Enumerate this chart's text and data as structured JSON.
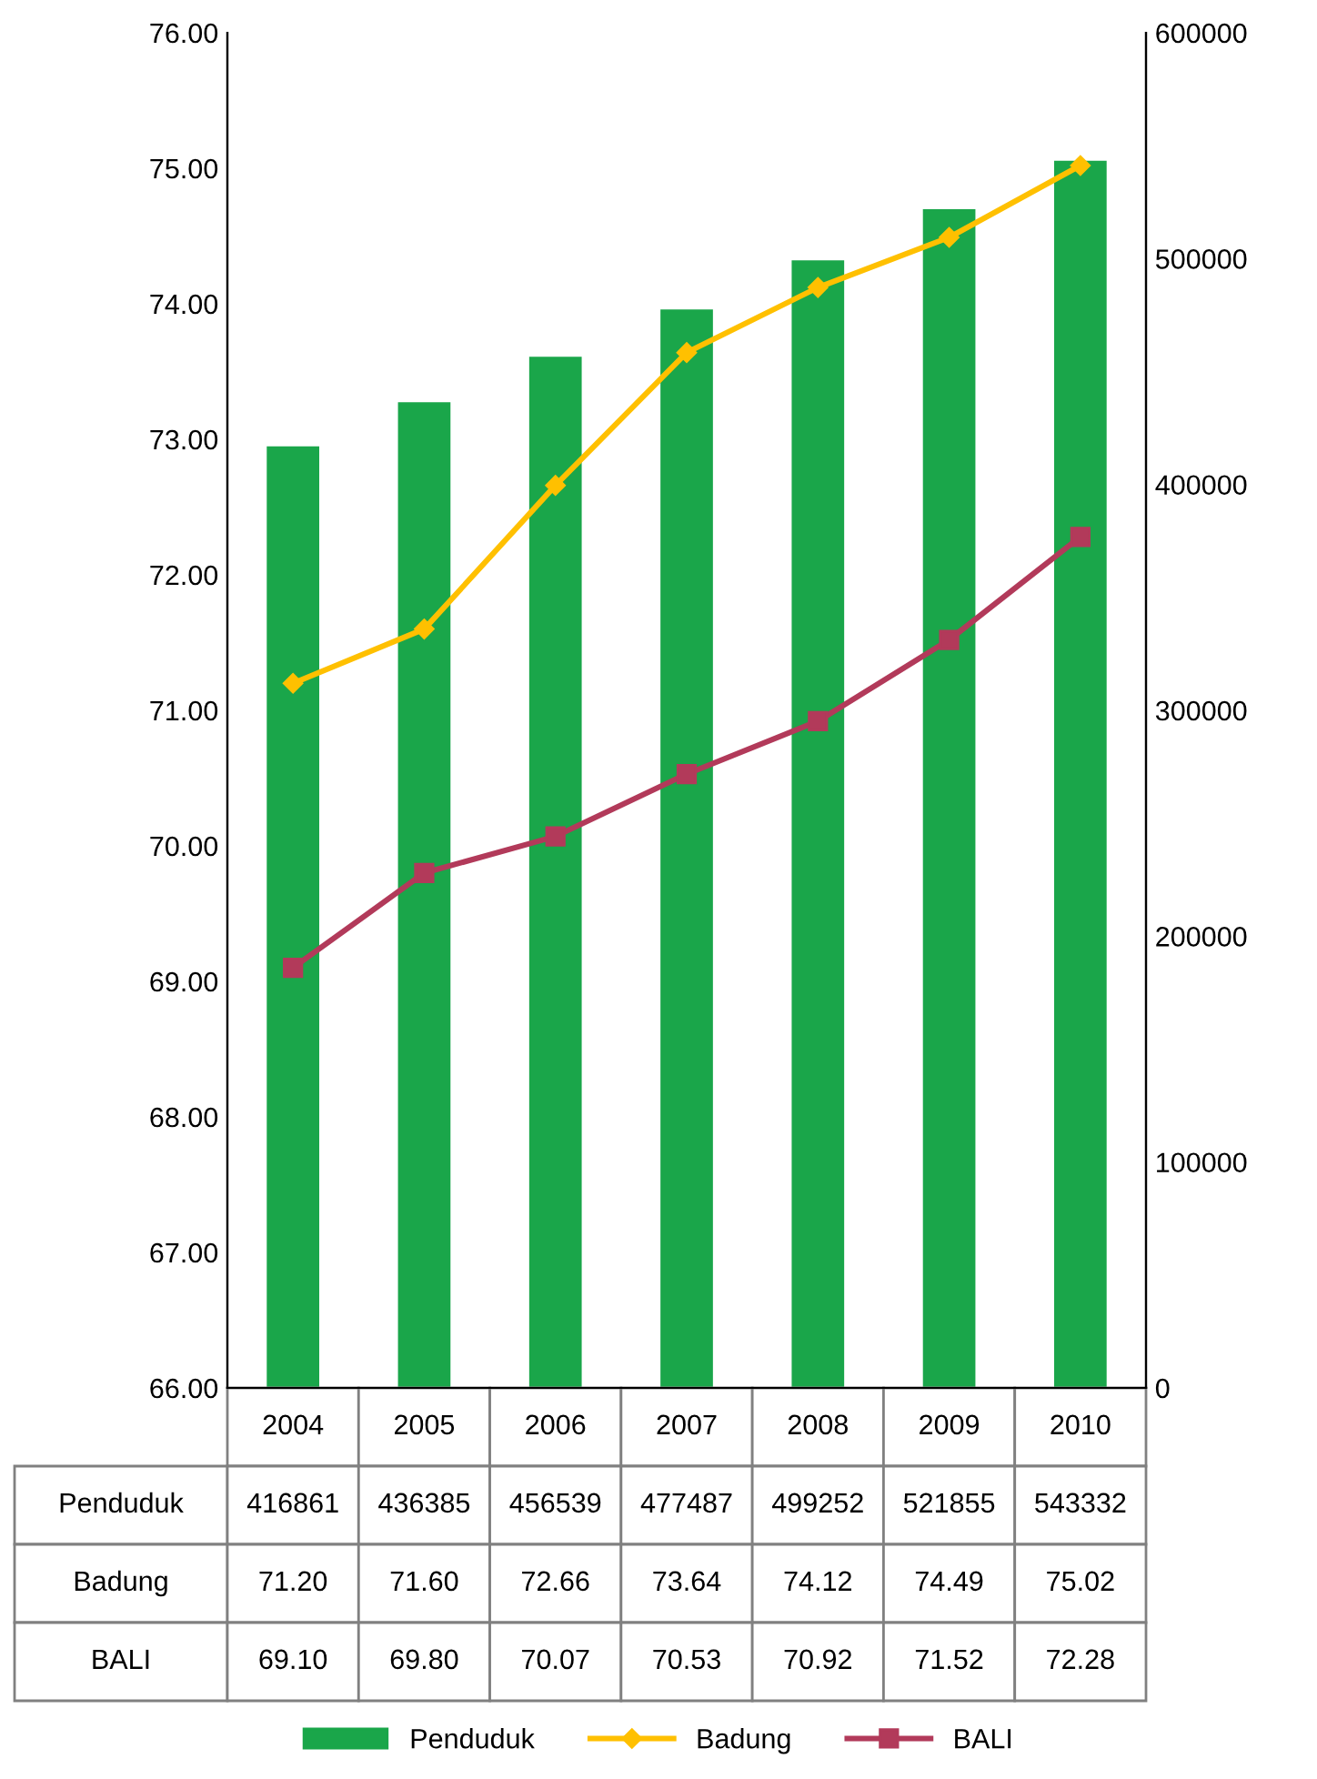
{
  "chart_data": {
    "type": "bar",
    "categories": [
      "2004",
      "2005",
      "2006",
      "2007",
      "2008",
      "2009",
      "2010"
    ],
    "series": [
      {
        "name": "Penduduk",
        "axis": "y2",
        "color": "#1aa64a",
        "values": [
          416861,
          436385,
          456539,
          477487,
          499252,
          521855,
          543332
        ],
        "value_labels": [
          "416861",
          "436385",
          "456539",
          "477487",
          "499252",
          "521855",
          "543332"
        ]
      },
      {
        "name": "Badung",
        "type": "line",
        "axis": "y",
        "color": "#ffc000",
        "marker": "diamond",
        "values": [
          71.2,
          71.6,
          72.66,
          73.64,
          74.12,
          74.49,
          75.02
        ],
        "value_labels": [
          "71.20",
          "71.60",
          "72.66",
          "73.64",
          "74.12",
          "74.49",
          "75.02"
        ]
      },
      {
        "name": "BALI",
        "type": "line",
        "axis": "y",
        "color": "#b23a5a",
        "marker": "square",
        "values": [
          69.1,
          69.8,
          70.07,
          70.53,
          70.92,
          71.52,
          72.28
        ],
        "value_labels": [
          "69.10",
          "69.80",
          "70.07",
          "70.53",
          "70.92",
          "71.52",
          "72.28"
        ]
      }
    ],
    "ylim": [
      66,
      76
    ],
    "yticks": [
      {
        "value": 66,
        "label": "66.00"
      },
      {
        "value": 67,
        "label": "67.00"
      },
      {
        "value": 68,
        "label": "68.00"
      },
      {
        "value": 69,
        "label": "69.00"
      },
      {
        "value": 70,
        "label": "70.00"
      },
      {
        "value": 71,
        "label": "71.00"
      },
      {
        "value": 72,
        "label": "72.00"
      },
      {
        "value": 73,
        "label": "73.00"
      },
      {
        "value": 74,
        "label": "74.00"
      },
      {
        "value": 75,
        "label": "75.00"
      },
      {
        "value": 76,
        "label": "76.00"
      }
    ],
    "y2lim": [
      0,
      600000
    ],
    "y2ticks": [
      0,
      100000,
      200000,
      300000,
      400000,
      500000,
      600000
    ],
    "legend": "bottom",
    "grid": false
  }
}
